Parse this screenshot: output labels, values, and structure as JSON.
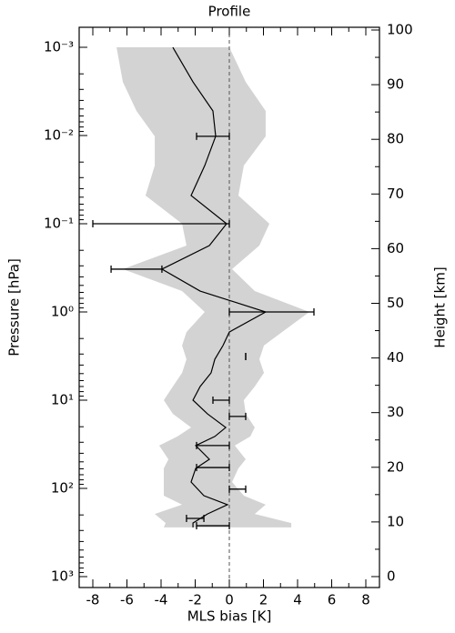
{
  "chart_data": {
    "type": "line",
    "title": "Profile",
    "xlabel": "MLS bias [K]",
    "ylabel": "Pressure [hPa]",
    "y2label": "Height [km]",
    "xlim": [
      -8.8,
      8.8
    ],
    "xticks": [
      -8,
      -6,
      -4,
      -2,
      0,
      2,
      4,
      6,
      8
    ],
    "ylim": [
      1330,
      0.000593
    ],
    "y_log": true,
    "yticks": [
      {
        "value": 0.001,
        "label": "10⁻³"
      },
      {
        "value": 0.01,
        "label": "10⁻²"
      },
      {
        "value": 0.1,
        "label": "10⁻¹"
      },
      {
        "value": 1,
        "label": "10⁰"
      },
      {
        "value": 10,
        "label": "10¹"
      },
      {
        "value": 100,
        "label": "10²"
      },
      {
        "value": 1000,
        "label": "10³"
      }
    ],
    "y2lim": [
      -2,
      100.5
    ],
    "y2ticks": [
      0,
      10,
      20,
      30,
      40,
      50,
      60,
      70,
      80,
      90,
      100
    ],
    "line_color": "#000000",
    "band_color": "#d3d3d3",
    "pressure": [
      0.001,
      0.00247,
      0.00527,
      0.0102,
      0.0219,
      0.0479,
      0.1,
      0.177,
      0.327,
      0.58,
      1,
      1.69,
      2.4,
      3.44,
      4.91,
      7.0,
      10,
      14.3,
      20.4,
      25.8,
      32.7,
      46.8,
      59.3,
      84.7,
      121,
      153,
      195,
      247,
      277
    ],
    "bias": [
      -3.31,
      -2.13,
      -0.96,
      -0.8,
      -1.44,
      -2.24,
      -0.16,
      -1.17,
      -3.95,
      -1.71,
      2.13,
      0,
      -0.37,
      -0.85,
      -1.07,
      -1.71,
      -2.13,
      -1.28,
      -0.21,
      -0.85,
      -1.97,
      -1.17,
      -1.97,
      -2.24,
      -1.49,
      -0.11,
      -1.28,
      -2.13,
      -2.13
    ],
    "band_low": [
      -6.61,
      -6.24,
      -5.44,
      -4.37,
      -4.37,
      -4.91,
      -2.77,
      -2.51,
      -6.24,
      -2.77,
      -1.44,
      -2.51,
      -2.77,
      -2.51,
      -2.77,
      -3.31,
      -3.84,
      -3.31,
      -2.24,
      -3.04,
      -4.11,
      -3.57,
      -3.84,
      -3.84,
      -3.84,
      -2.77,
      -4.37,
      -3.73,
      -3.84
    ],
    "band_high": [
      0,
      0.96,
      2.13,
      2.13,
      0.85,
      0.53,
      2.35,
      1.76,
      0.16,
      1.49,
      4.69,
      3.09,
      2.03,
      1.76,
      2.03,
      1.49,
      0.85,
      0.96,
      1.49,
      1.23,
      0.32,
      0.96,
      0.53,
      0.16,
      0.85,
      2.13,
      1.49,
      3.63,
      3.63
    ],
    "error_bars": {
      "pressure": [
        0.0102,
        0.1,
        0.327,
        1,
        3.2,
        10,
        15.3,
        32.7,
        58,
        102,
        219,
        265
      ],
      "low": [
        -1.92,
        -8,
        -6.93,
        0,
        0.96,
        -0.96,
        0,
        -1.92,
        -1.92,
        0,
        -2.51,
        -1.92
      ],
      "high": [
        0,
        0,
        -3.95,
        4.96,
        0.96,
        0,
        0.96,
        0,
        0,
        0.96,
        -1.49,
        0
      ]
    }
  }
}
